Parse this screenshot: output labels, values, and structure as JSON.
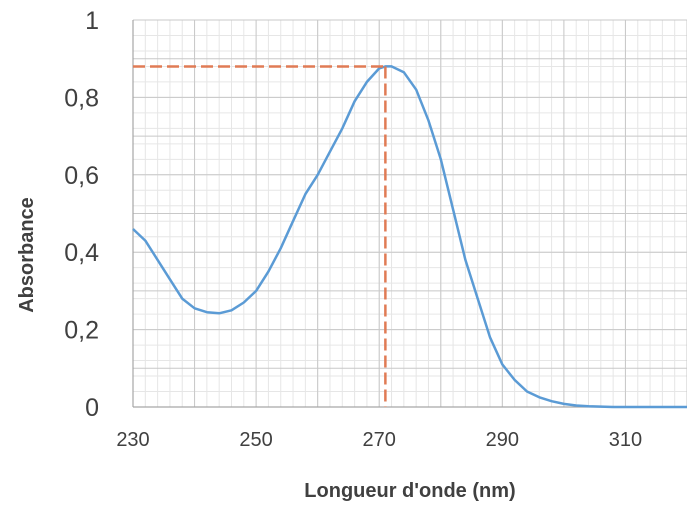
{
  "chart_data": {
    "type": "line",
    "title": "",
    "xlabel": "Longueur d'onde (nm)",
    "ylabel": "Absorbance",
    "xlim": [
      230,
      320
    ],
    "ylim": [
      0,
      1
    ],
    "x_ticks": [
      230,
      250,
      270,
      290,
      310
    ],
    "x_tick_labels": [
      "230",
      "250",
      "270",
      "290",
      "310"
    ],
    "y_ticks": [
      0,
      0.2,
      0.4,
      0.6,
      0.8,
      1
    ],
    "y_tick_labels": [
      "0",
      "0,2",
      "0,4",
      "0,6",
      "0,8",
      "1"
    ],
    "grid": true,
    "legend": "none",
    "series": [
      {
        "color": "#5b9bd5",
        "x": [
          230,
          232,
          234,
          236,
          238,
          240,
          242,
          244,
          246,
          248,
          250,
          252,
          254,
          256,
          258,
          260,
          262,
          264,
          266,
          268,
          270,
          271,
          272,
          274,
          276,
          278,
          280,
          282,
          284,
          286,
          288,
          290,
          292,
          294,
          296,
          298,
          300,
          302,
          304,
          306,
          308,
          310,
          315,
          320
        ],
        "y": [
          0.46,
          0.43,
          0.38,
          0.33,
          0.28,
          0.255,
          0.245,
          0.242,
          0.25,
          0.27,
          0.3,
          0.35,
          0.41,
          0.48,
          0.55,
          0.6,
          0.66,
          0.72,
          0.79,
          0.84,
          0.875,
          0.88,
          0.88,
          0.865,
          0.82,
          0.74,
          0.64,
          0.51,
          0.38,
          0.28,
          0.18,
          0.11,
          0.07,
          0.04,
          0.025,
          0.015,
          0.008,
          0.004,
          0.002,
          0.001,
          0.0,
          0.0,
          0.0,
          0.0
        ]
      }
    ],
    "annotations": [
      {
        "type": "peak-marker",
        "color": "#e07b55",
        "x": 271,
        "y": 0.88
      }
    ]
  }
}
